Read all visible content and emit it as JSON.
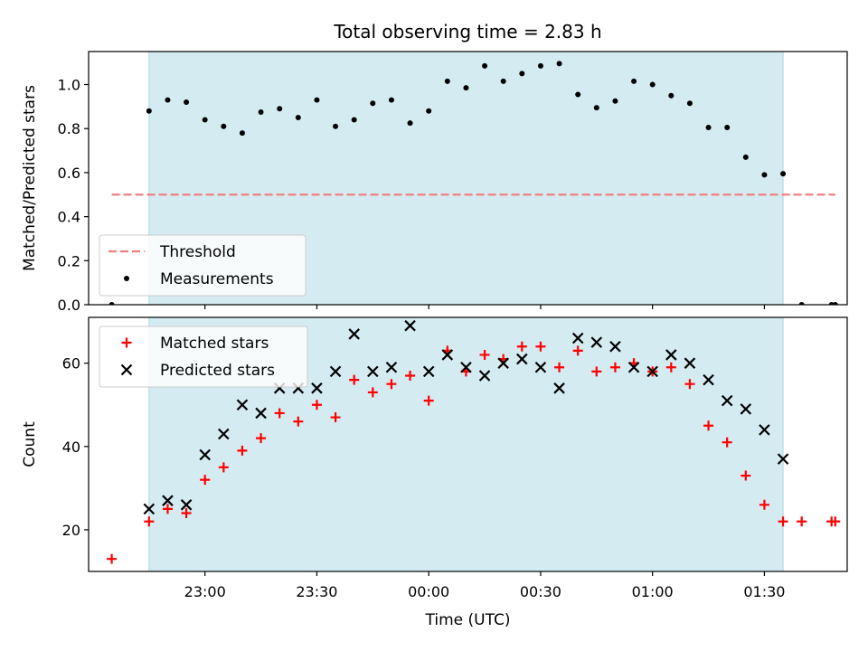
{
  "chart_data": [
    {
      "type": "scatter",
      "panel": "top",
      "title": "Total observing time = 2.83 h",
      "ylabel": "Matched/Predicted stars",
      "xlabel": "",
      "ylim": [
        0,
        1.15
      ],
      "yticks": [
        "0.0",
        "0.2",
        "0.4",
        "0.6",
        "0.8",
        "1.0"
      ],
      "shaded_span": {
        "start": "22:45",
        "end": "01:35",
        "color": "#d4ebf1"
      },
      "threshold": {
        "name": "Threshold",
        "value": 0.5,
        "x_start": "22:35",
        "x_end": "01:49",
        "color": "#f08080"
      },
      "series": [
        {
          "name": "Measurements",
          "color": "#000000",
          "marker": "dot",
          "points": [
            [
              "22:35",
              0.0
            ],
            [
              "22:45",
              0.88
            ],
            [
              "22:50",
              0.93
            ],
            [
              "22:55",
              0.92
            ],
            [
              "23:00",
              0.84
            ],
            [
              "23:05",
              0.81
            ],
            [
              "23:10",
              0.78
            ],
            [
              "23:15",
              0.875
            ],
            [
              "23:20",
              0.89
            ],
            [
              "23:25",
              0.85
            ],
            [
              "23:30",
              0.93
            ],
            [
              "23:35",
              0.81
            ],
            [
              "23:40",
              0.84
            ],
            [
              "23:45",
              0.915
            ],
            [
              "23:50",
              0.93
            ],
            [
              "23:55",
              0.825
            ],
            [
              "00:00",
              0.88
            ],
            [
              "00:05",
              1.015
            ],
            [
              "00:10",
              0.985
            ],
            [
              "00:15",
              1.085
            ],
            [
              "00:20",
              1.015
            ],
            [
              "00:25",
              1.05
            ],
            [
              "00:30",
              1.085
            ],
            [
              "00:35",
              1.095
            ],
            [
              "00:40",
              0.955
            ],
            [
              "00:45",
              0.895
            ],
            [
              "00:50",
              0.925
            ],
            [
              "00:55",
              1.015
            ],
            [
              "01:00",
              1.0
            ],
            [
              "01:05",
              0.95
            ],
            [
              "01:10",
              0.915
            ],
            [
              "01:15",
              0.805
            ],
            [
              "01:20",
              0.805
            ],
            [
              "01:25",
              0.67
            ],
            [
              "01:30",
              0.59
            ],
            [
              "01:35",
              0.595
            ],
            [
              "01:40",
              0.0
            ],
            [
              "01:48",
              0.0
            ],
            [
              "01:49",
              0.0
            ]
          ]
        }
      ],
      "legend": {
        "location": "lower-left",
        "entries": [
          "Threshold",
          "Measurements"
        ]
      }
    },
    {
      "type": "scatter",
      "panel": "bottom",
      "title": "",
      "ylabel": "Count",
      "xlabel": "Time (UTC)",
      "ylim": [
        10,
        71
      ],
      "yticks": [
        "20",
        "40",
        "60"
      ],
      "xticks": [
        "23:00",
        "23:30",
        "00:00",
        "00:30",
        "01:00",
        "01:30"
      ],
      "shaded_span": {
        "start": "22:45",
        "end": "01:35",
        "color": "#d4ebf1"
      },
      "series": [
        {
          "name": "Matched stars",
          "color": "#ff0000",
          "marker": "plus",
          "points": [
            [
              "22:35",
              13
            ],
            [
              "22:45",
              22
            ],
            [
              "22:50",
              25
            ],
            [
              "22:55",
              24
            ],
            [
              "23:00",
              32
            ],
            [
              "23:05",
              35
            ],
            [
              "23:10",
              39
            ],
            [
              "23:15",
              42
            ],
            [
              "23:20",
              48
            ],
            [
              "23:25",
              46
            ],
            [
              "23:30",
              50
            ],
            [
              "23:35",
              47
            ],
            [
              "23:40",
              56
            ],
            [
              "23:45",
              53
            ],
            [
              "23:50",
              55
            ],
            [
              "23:55",
              57
            ],
            [
              "00:00",
              51
            ],
            [
              "00:05",
              63
            ],
            [
              "00:10",
              58
            ],
            [
              "00:15",
              62
            ],
            [
              "00:20",
              61
            ],
            [
              "00:25",
              64
            ],
            [
              "00:30",
              64
            ],
            [
              "00:35",
              59
            ],
            [
              "00:40",
              63
            ],
            [
              "00:45",
              58
            ],
            [
              "00:50",
              59
            ],
            [
              "00:55",
              60
            ],
            [
              "01:00",
              58
            ],
            [
              "01:05",
              59
            ],
            [
              "01:10",
              55
            ],
            [
              "01:15",
              45
            ],
            [
              "01:20",
              41
            ],
            [
              "01:25",
              33
            ],
            [
              "01:30",
              26
            ],
            [
              "01:35",
              22
            ],
            [
              "01:40",
              22
            ],
            [
              "01:48",
              22
            ],
            [
              "01:49",
              22
            ]
          ]
        },
        {
          "name": "Predicted stars",
          "color": "#000000",
          "marker": "x",
          "points": [
            [
              "22:45",
              25
            ],
            [
              "22:50",
              27
            ],
            [
              "22:55",
              26
            ],
            [
              "23:00",
              38
            ],
            [
              "23:05",
              43
            ],
            [
              "23:10",
              50
            ],
            [
              "23:15",
              48
            ],
            [
              "23:20",
              54
            ],
            [
              "23:25",
              54
            ],
            [
              "23:30",
              54
            ],
            [
              "23:35",
              58
            ],
            [
              "23:40",
              67
            ],
            [
              "23:45",
              58
            ],
            [
              "23:50",
              59
            ],
            [
              "23:55",
              69
            ],
            [
              "00:00",
              58
            ],
            [
              "00:05",
              62
            ],
            [
              "00:10",
              59
            ],
            [
              "00:15",
              57
            ],
            [
              "00:20",
              60
            ],
            [
              "00:25",
              61
            ],
            [
              "00:30",
              59
            ],
            [
              "00:35",
              54
            ],
            [
              "00:40",
              66
            ],
            [
              "00:45",
              65
            ],
            [
              "00:50",
              64
            ],
            [
              "00:55",
              59
            ],
            [
              "01:00",
              58
            ],
            [
              "01:05",
              62
            ],
            [
              "01:10",
              60
            ],
            [
              "01:15",
              56
            ],
            [
              "01:20",
              51
            ],
            [
              "01:25",
              49
            ],
            [
              "01:30",
              44
            ],
            [
              "01:35",
              37
            ]
          ]
        }
      ],
      "legend": {
        "location": "upper-left",
        "entries": [
          "Matched stars",
          "Predicted stars"
        ]
      }
    }
  ]
}
